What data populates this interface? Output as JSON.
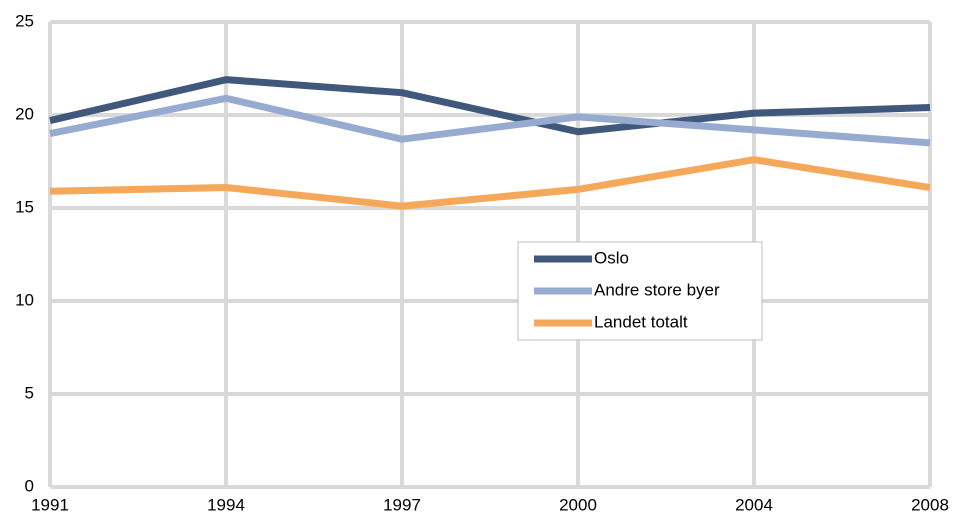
{
  "chart_data": {
    "type": "line",
    "categories": [
      "1991",
      "1994",
      "1997",
      "2000",
      "2004",
      "2008"
    ],
    "series": [
      {
        "name": "Oslo",
        "color": "#41587d",
        "values": [
          19.7,
          21.9,
          21.2,
          19.1,
          20.1,
          20.4
        ]
      },
      {
        "name": "Andre store byer",
        "color": "#97abd0",
        "values": [
          19.0,
          20.9,
          18.7,
          19.9,
          19.2,
          18.5
        ]
      },
      {
        "name": "Landet totalt",
        "color": "#f5a85a",
        "values": [
          15.9,
          16.1,
          15.1,
          16.0,
          17.6,
          16.1
        ]
      }
    ],
    "ylim": [
      0,
      25
    ],
    "yticks": [
      0,
      5,
      10,
      15,
      20,
      25
    ],
    "grid": true
  }
}
